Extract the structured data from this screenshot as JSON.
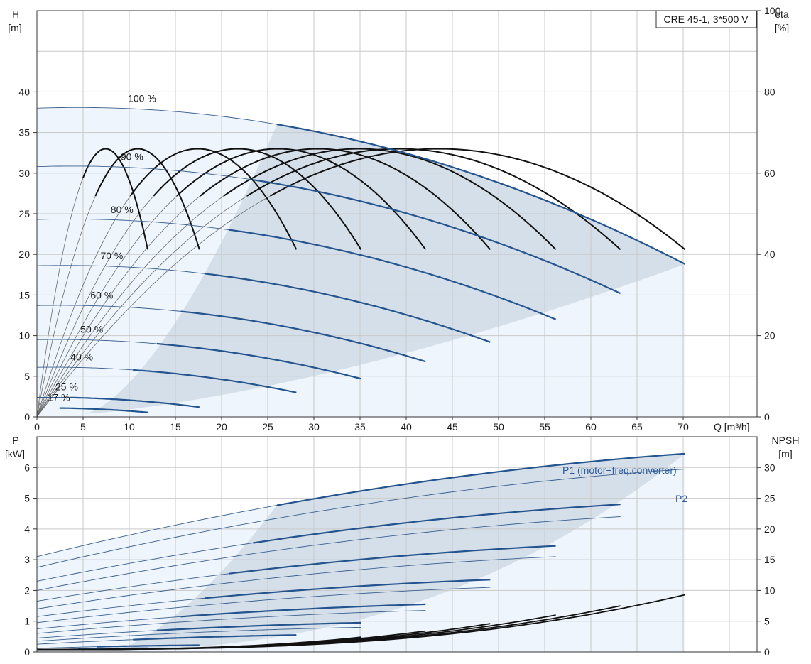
{
  "chart_data": [
    {
      "type": "line",
      "title": "CRE 45-1, 3*500 V",
      "xlabel": "Q [m³/h]",
      "ylabel_left_title": "H",
      "ylabel_left_unit": "[m]",
      "ylabel_right_title": "eta",
      "ylabel_right_unit": "[%]",
      "xlim": [
        0,
        78
      ],
      "ylim_left": [
        0,
        50
      ],
      "ylim_right": [
        0,
        100
      ],
      "x_ticks": [
        0,
        5,
        10,
        15,
        20,
        25,
        30,
        35,
        40,
        45,
        50,
        55,
        60,
        65,
        70
      ],
      "y_ticks_left": [
        0,
        5,
        10,
        15,
        20,
        25,
        30,
        35,
        40
      ],
      "y_ticks_right": [
        0,
        20,
        40,
        60,
        80,
        100
      ],
      "grid": true,
      "head_curves": [
        {
          "speed": 100,
          "label": "100 %",
          "shutoff_head": 38,
          "qmax": 70.2,
          "end_head": 18.8
        },
        {
          "speed": 90,
          "label": "90 %",
          "shutoff_head": 30.8,
          "qmax": 63.2,
          "end_head": 15.2
        },
        {
          "speed": 80,
          "label": "80 %",
          "shutoff_head": 24.3,
          "qmax": 56.2,
          "end_head": 12.0
        },
        {
          "speed": 70,
          "label": "70 %",
          "shutoff_head": 18.6,
          "qmax": 49.1,
          "end_head": 9.2
        },
        {
          "speed": 60,
          "label": "60 %",
          "shutoff_head": 13.7,
          "qmax": 42.1,
          "end_head": 6.8
        },
        {
          "speed": 50,
          "label": "50 %",
          "shutoff_head": 9.5,
          "qmax": 35.1,
          "end_head": 4.7
        },
        {
          "speed": 40,
          "label": "40 %",
          "shutoff_head": 6.1,
          "qmax": 28.1,
          "end_head": 3.0
        },
        {
          "speed": 25,
          "label": "25 %",
          "shutoff_head": 2.4,
          "qmax": 17.6,
          "end_head": 1.2
        },
        {
          "speed": 17,
          "label": "17 %",
          "shutoff_head": 1.1,
          "qmax": 12.0,
          "end_head": 0.55
        }
      ],
      "efficiency_peak_percent": 66
    },
    {
      "type": "line",
      "title": "",
      "xlabel": "",
      "ylabel_left_title": "P",
      "ylabel_left_unit": "[kW]",
      "ylabel_right_title": "NPSH",
      "ylabel_right_unit": "[m]",
      "xlim": [
        0,
        78
      ],
      "ylim_left": [
        0,
        7
      ],
      "ylim_right": [
        0,
        35
      ],
      "y_ticks_left": [
        0,
        1,
        2,
        3,
        4,
        5,
        6
      ],
      "y_ticks_right": [
        0,
        5,
        10,
        15,
        20,
        25,
        30
      ],
      "grid": true,
      "series_labels": {
        "p1": "P1 (motor+freq.converter)",
        "p2": "P2"
      },
      "p1_curves": [
        {
          "speed": 100,
          "start": 3.1,
          "qmax": 70.2,
          "end": 6.45
        },
        {
          "speed": 90,
          "start": 2.3,
          "qmax": 63.2,
          "end": 4.8
        },
        {
          "speed": 80,
          "start": 1.65,
          "qmax": 56.2,
          "end": 3.45
        },
        {
          "speed": 70,
          "start": 1.15,
          "qmax": 49.1,
          "end": 2.35
        },
        {
          "speed": 60,
          "start": 0.75,
          "qmax": 42.1,
          "end": 1.55
        },
        {
          "speed": 50,
          "start": 0.45,
          "qmax": 35.1,
          "end": 0.95
        },
        {
          "speed": 40,
          "start": 0.25,
          "qmax": 28.1,
          "end": 0.55
        },
        {
          "speed": 25,
          "start": 0.12,
          "qmax": 17.6,
          "end": 0.22
        },
        {
          "speed": 17,
          "start": 0.08,
          "qmax": 12.0,
          "end": 0.12
        }
      ],
      "p2_curves": [
        {
          "speed": 100,
          "start": 2.75,
          "qmax": 70.2,
          "end": 5.95
        },
        {
          "speed": 90,
          "start": 2.0,
          "qmax": 63.2,
          "end": 4.4
        },
        {
          "speed": 80,
          "start": 1.4,
          "qmax": 56.2,
          "end": 3.1
        },
        {
          "speed": 70,
          "start": 0.95,
          "qmax": 49.1,
          "end": 2.1
        },
        {
          "speed": 60,
          "start": 0.6,
          "qmax": 42.1,
          "end": 1.35
        },
        {
          "speed": 50,
          "start": 0.35,
          "qmax": 35.1,
          "end": 0.8
        }
      ],
      "npsh_curves": [
        {
          "qmax": 70.2,
          "end": 9.3
        },
        {
          "qmax": 63.2,
          "end": 7.5
        },
        {
          "qmax": 56.2,
          "end": 6.0
        },
        {
          "qmax": 49.1,
          "end": 4.6
        },
        {
          "qmax": 42.1,
          "end": 3.4
        },
        {
          "qmax": 35.1,
          "end": 2.4
        }
      ]
    }
  ],
  "colors": {
    "thick_blue": "#24548e",
    "thin_blue": "#3a5f8e",
    "region_light": "#eef5fc",
    "region_dark": "#d5dfea",
    "grid": "#c9c9c9",
    "black_curve": "#111111"
  }
}
